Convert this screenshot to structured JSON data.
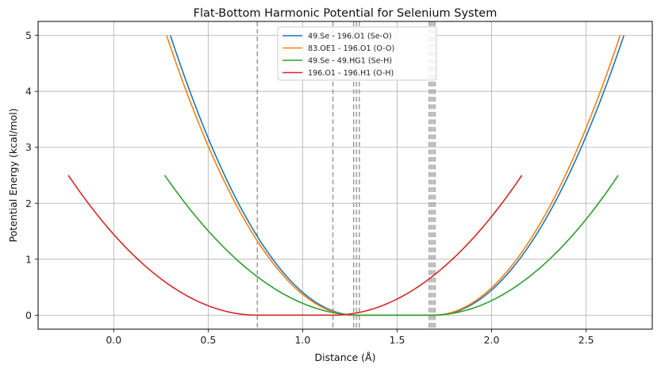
{
  "chart_data": {
    "type": "line",
    "title": "Flat-Bottom Harmonic Potential for Selenium System",
    "xlabel": "Distance (Å)",
    "ylabel": "Potential Energy (kcal/mol)",
    "xlim": [
      -0.4,
      2.85
    ],
    "ylim": [
      -0.25,
      5.25
    ],
    "xticks": [
      0.0,
      0.5,
      1.0,
      1.5,
      2.0,
      2.5
    ],
    "xtick_labels": [
      "0.0",
      "0.5",
      "1.0",
      "1.5",
      "2.0",
      "2.5"
    ],
    "yticks": [
      0,
      1,
      2,
      3,
      4,
      5
    ],
    "ytick_labels": [
      "0",
      "1",
      "2",
      "3",
      "4",
      "5"
    ],
    "grid": true,
    "legend_position": "top-center",
    "vlines": [
      0.76,
      1.16,
      1.27,
      1.285,
      1.3,
      1.67,
      1.68,
      1.69,
      1.7
    ],
    "vline_color": "#a0a0a0",
    "series": [
      {
        "name": "49.Se  - 196.O1 (Se-O)",
        "color": "#1f77b4",
        "x_start": 0.3,
        "x_end": 2.7,
        "flat_min": 1.28,
        "flat_max": 1.7,
        "force_k": 5.0
      },
      {
        "name": "83.OE1 - 196.O1 (O-O)",
        "color": "#ff7f0e",
        "x_start": 0.28,
        "x_end": 2.68,
        "flat_min": 1.27,
        "flat_max": 1.69,
        "force_k": 5.0
      },
      {
        "name": "49.Se  - 49.HG1 (Se-H)",
        "color": "#2ca02c",
        "x_start": 0.27,
        "x_end": 2.67,
        "flat_min": 1.3,
        "flat_max": 1.68,
        "force_k": 2.5
      },
      {
        "name": "196.O1 - 196.H1 (O-H)",
        "color": "#d62728",
        "x_start": -0.24,
        "x_end": 2.16,
        "flat_min": 0.76,
        "flat_max": 1.16,
        "force_k": 2.5
      }
    ]
  }
}
